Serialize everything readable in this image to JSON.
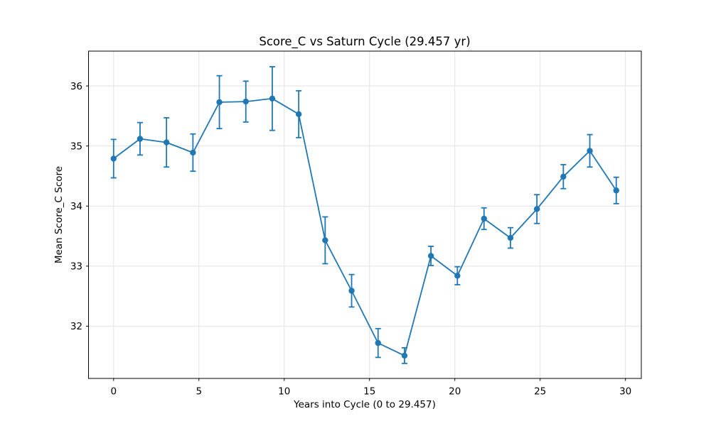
{
  "chart_data": {
    "type": "line",
    "title": "Score_C vs Saturn Cycle (29.457 yr)",
    "xlabel": "Years into Cycle (0 to 29.457)",
    "ylabel": "Mean Score_C Score",
    "x": [
      0.0,
      1.55,
      3.1,
      4.65,
      6.2,
      7.75,
      9.3,
      10.85,
      12.4,
      13.95,
      15.5,
      17.05,
      18.6,
      20.15,
      21.71,
      23.26,
      24.81,
      26.36,
      27.91,
      29.46
    ],
    "y": [
      34.79,
      35.12,
      35.06,
      34.89,
      35.73,
      35.74,
      35.79,
      35.53,
      33.43,
      32.59,
      31.72,
      31.51,
      33.17,
      32.84,
      33.79,
      33.47,
      33.95,
      34.49,
      34.92,
      34.26
    ],
    "yerr": [
      0.32,
      0.27,
      0.41,
      0.31,
      0.44,
      0.34,
      0.53,
      0.39,
      0.39,
      0.27,
      0.24,
      0.13,
      0.16,
      0.15,
      0.18,
      0.17,
      0.24,
      0.2,
      0.27,
      0.22
    ],
    "xticks": [
      0,
      5,
      10,
      15,
      20,
      25,
      30
    ],
    "yticks": [
      32,
      33,
      34,
      35,
      36
    ],
    "xlim": [
      -1.47,
      30.93
    ],
    "ylim": [
      31.13,
      36.58
    ],
    "grid": true,
    "legend": null,
    "line_color": "#1f77b4",
    "marker": "circle",
    "marker_color": "#1f77b4",
    "grid_color": "#e2e2e2",
    "spine_color": "#000000",
    "background_color": "#ffffff"
  }
}
